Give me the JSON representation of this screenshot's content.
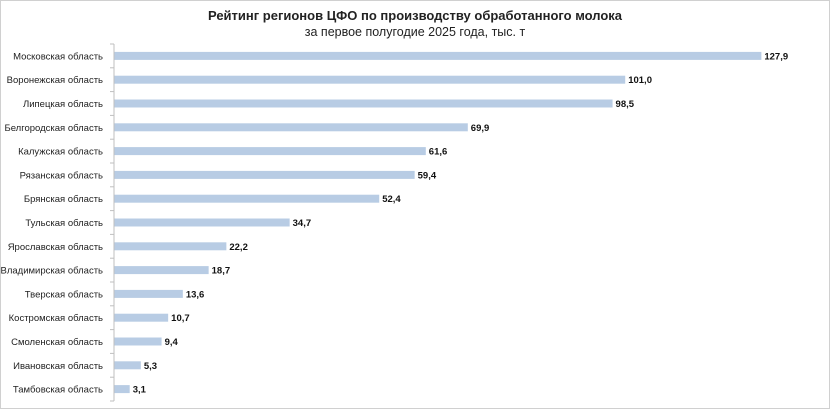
{
  "chart_data": {
    "type": "bar",
    "orientation": "horizontal",
    "title": "Рейтинг регионов ЦФО по производству обработанного молока",
    "subtitle": "за первое полугодие 2025 года, тыс. т",
    "categories": [
      "Московская область",
      "Воронежская область",
      "Липецкая область",
      "Белгородская область",
      "Калужская область",
      "Рязанская область",
      "Брянская область",
      "Тульская область",
      "Ярославская область",
      "Владимирская область",
      "Тверская область",
      "Костромская область",
      "Смоленская область",
      "Ивановская область",
      "Тамбовская область"
    ],
    "values": [
      127.9,
      101.0,
      98.5,
      69.9,
      61.6,
      59.4,
      52.4,
      34.7,
      22.2,
      18.7,
      13.6,
      10.7,
      9.4,
      5.3,
      3.1
    ],
    "value_labels": [
      "127,9",
      "101,0",
      "98,5",
      "69,9",
      "61,6",
      "59,4",
      "52,4",
      "34,7",
      "22,2",
      "18,7",
      "13,6",
      "10,7",
      "9,4",
      "5,3",
      "3,1"
    ],
    "xlim": [
      0,
      130
    ],
    "grid": false,
    "legend": "none",
    "bar_color": "#b8cce4",
    "axis_color": "#bfbfbf"
  }
}
